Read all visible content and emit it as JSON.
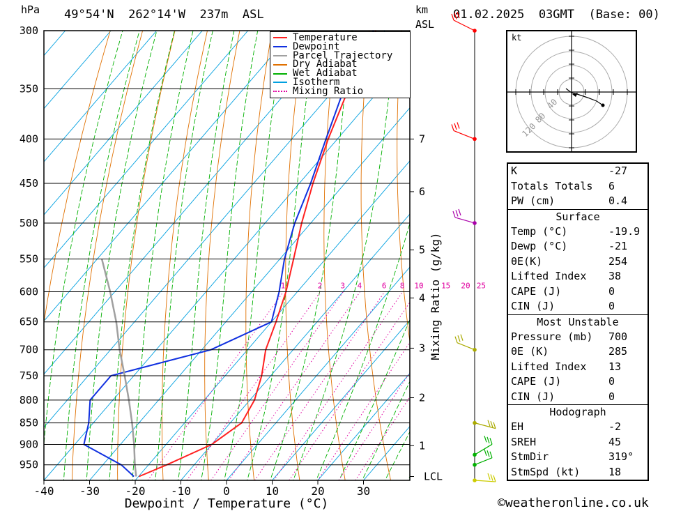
{
  "header": {
    "pressure_unit": "hPa",
    "location": "49°54'N  262°14'W  237m  ASL",
    "height_unit": "km",
    "height_unit2": "ASL",
    "datetime": "01.02.2025  03GMT  (Base: 00)"
  },
  "chart_data": {
    "type": "line",
    "chart_kind": "Skew-T log-P diagram",
    "x_axis": {
      "label": "Dewpoint / Temperature (°C)",
      "range": [
        -40,
        40
      ],
      "ticks": [
        -40,
        -30,
        -20,
        -10,
        0,
        10,
        20,
        30
      ]
    },
    "y_axis": {
      "label": "hPa",
      "scale": "log",
      "range": [
        300,
        990
      ],
      "ticks": [
        300,
        350,
        400,
        450,
        500,
        550,
        600,
        650,
        700,
        750,
        800,
        850,
        900,
        950
      ]
    },
    "km_axis": {
      "ticks": [
        {
          "label": "7",
          "p": 400
        },
        {
          "label": "6",
          "p": 460
        },
        {
          "label": "5",
          "p": 537
        },
        {
          "label": "4",
          "p": 610
        },
        {
          "label": "3",
          "p": 697
        },
        {
          "label": "2",
          "p": 795
        },
        {
          "label": "1",
          "p": 903
        },
        {
          "label": "LCL",
          "p": 980
        }
      ]
    },
    "mixing_ratio_label": "Mixing Ratio (g/kg)",
    "mixing_ratio_values": [
      "1",
      "2",
      "3",
      "4",
      "6",
      "8",
      "10",
      "15",
      "20",
      "25"
    ],
    "legend": {
      "placement": "top-center",
      "entries": [
        {
          "label": "Temperature",
          "color": "#ff2020"
        },
        {
          "label": "Dewpoint",
          "color": "#1030e0"
        },
        {
          "label": "Parcel Trajectory",
          "color": "#a0a0a0"
        },
        {
          "label": "Dry Adiabat",
          "color": "#e07000"
        },
        {
          "label": "Wet Adiabat",
          "color": "#00b000"
        },
        {
          "label": "Isotherm",
          "color": "#00a0e0"
        },
        {
          "label": "Mixing Ratio",
          "color": "#e000a0"
        }
      ]
    },
    "series": [
      {
        "name": "Temperature",
        "color": "#ff2020",
        "points": [
          [
            300,
            -52
          ],
          [
            350,
            -47
          ],
          [
            400,
            -42
          ],
          [
            450,
            -37
          ],
          [
            500,
            -32
          ],
          [
            550,
            -27
          ],
          [
            600,
            -22.5
          ],
          [
            650,
            -19
          ],
          [
            700,
            -16
          ],
          [
            750,
            -12
          ],
          [
            800,
            -9
          ],
          [
            850,
            -7.5
          ],
          [
            900,
            -10
          ],
          [
            950,
            -16
          ],
          [
            980,
            -19.9
          ]
        ]
      },
      {
        "name": "Dewpoint",
        "color": "#1030e0",
        "points": [
          [
            300,
            -52.5
          ],
          [
            350,
            -48
          ],
          [
            400,
            -42.5
          ],
          [
            450,
            -37.5
          ],
          [
            500,
            -33.5
          ],
          [
            550,
            -29
          ],
          [
            600,
            -24
          ],
          [
            650,
            -20
          ],
          [
            700,
            -28
          ],
          [
            750,
            -45
          ],
          [
            800,
            -45
          ],
          [
            850,
            -41
          ],
          [
            900,
            -38
          ],
          [
            950,
            -26
          ],
          [
            980,
            -21
          ]
        ]
      },
      {
        "name": "Parcel Trajectory",
        "color": "#a0a0a0",
        "points": [
          [
            980,
            -20.5
          ],
          [
            950,
            -23
          ],
          [
            900,
            -27
          ],
          [
            850,
            -31.5
          ],
          [
            800,
            -36.5
          ],
          [
            750,
            -42
          ],
          [
            700,
            -48
          ],
          [
            650,
            -54
          ],
          [
            600,
            -61
          ],
          [
            550,
            -69
          ]
        ]
      }
    ],
    "wind_barbs_color": [
      "#ff0000",
      "#ff0000",
      "#aa00aa",
      "#aaaa00",
      "#aaaa00",
      "#00b000",
      "#00b000",
      "#cccc00"
    ]
  },
  "hodograph": {
    "unit": "kt",
    "ring_labels": [
      "40",
      "80",
      "120"
    ]
  },
  "indices": {
    "k": {
      "label": "K",
      "value": "-27"
    },
    "tt": {
      "label": "Totals Totals",
      "value": "6"
    },
    "pw": {
      "label": "PW (cm)",
      "value": "0.4"
    },
    "surface": {
      "title": "Surface",
      "temp": {
        "label": "Temp (°C)",
        "value": "-19.9"
      },
      "dewp": {
        "label": "Dewp (°C)",
        "value": "-21"
      },
      "theta": {
        "label": "θE(K)",
        "value": "254"
      },
      "li": {
        "label": "Lifted Index",
        "value": "38"
      },
      "cape": {
        "label": "CAPE (J)",
        "value": "0"
      },
      "cin": {
        "label": "CIN (J)",
        "value": "0"
      }
    },
    "mu": {
      "title": "Most Unstable",
      "pres": {
        "label": "Pressure (mb)",
        "value": "700"
      },
      "theta": {
        "label": "θE (K)",
        "value": "285"
      },
      "li": {
        "label": "Lifted Index",
        "value": "13"
      },
      "cape": {
        "label": "CAPE (J)",
        "value": "0"
      },
      "cin": {
        "label": "CIN (J)",
        "value": "0"
      }
    },
    "hodo": {
      "title": "Hodograph",
      "eh": {
        "label": "EH",
        "value": "-2"
      },
      "sreh": {
        "label": "SREH",
        "value": "45"
      },
      "stmdir": {
        "label": "StmDir",
        "value": "319°"
      },
      "stmspd": {
        "label": "StmSpd (kt)",
        "value": "18"
      }
    }
  },
  "copyright": "©weatheronline.co.uk"
}
